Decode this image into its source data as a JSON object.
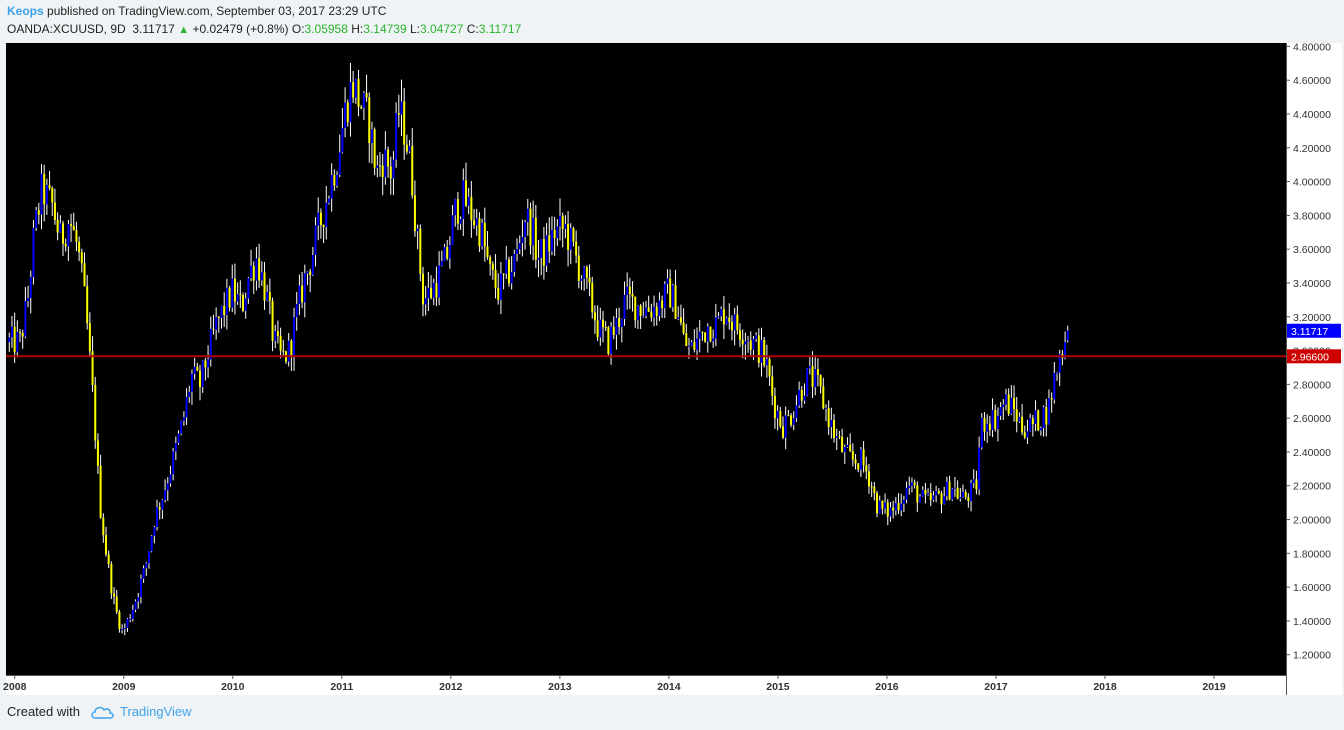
{
  "header": {
    "author": "Keops",
    "published_text": "published on TradingView.com, September 03, 2017 23:29 UTC",
    "symbol": "OANDA:XCUUSD, 9D",
    "last": "3.11717",
    "change": "+0.02479 (+0.8%)",
    "open_label": "O:",
    "open": "3.05958",
    "high_label": "H:",
    "high": "3.14739",
    "low_label": "L:",
    "low": "3.04727",
    "close_label": "C:",
    "close": "3.11717",
    "up_arrow": "▲"
  },
  "footer": {
    "created_with": "Created with",
    "brand": "TradingView",
    "logo_icon": "cloud-logo-icon"
  },
  "colors": {
    "background": "#000000",
    "up_candle": "#0000ff",
    "down_candle": "#ffff00",
    "wick": "#ffffff",
    "horizontal_line": "#b30000",
    "last_price_badge": "#0000ff",
    "line_badge": "#cc0000",
    "accent": "#3da2ea"
  },
  "chart_data": {
    "type": "candlestick",
    "symbol": "OANDA:XCUUSD",
    "interval": "9D",
    "x_ticks": [
      "2008",
      "2009",
      "2010",
      "2011",
      "2012",
      "2013",
      "2014",
      "2015",
      "2016",
      "2017",
      "2018",
      "2019"
    ],
    "y_ticks": [
      "1.20000",
      "1.40000",
      "1.60000",
      "1.80000",
      "2.00000",
      "2.20000",
      "2.40000",
      "2.60000",
      "2.80000",
      "3.00000",
      "3.20000",
      "3.40000",
      "3.60000",
      "3.80000",
      "4.00000",
      "4.20000",
      "4.40000",
      "4.60000",
      "4.80000"
    ],
    "ylim": [
      1.08,
      4.82
    ],
    "xlim": [
      2007.92,
      2019.66
    ],
    "last_price_label": "3.11717",
    "last_price": 3.11717,
    "horizontal_line_label": "2.96600",
    "horizontal_line": 2.966,
    "price_path": [
      [
        2007.95,
        3.05
      ],
      [
        2008.05,
        3.05
      ],
      [
        2008.12,
        3.3
      ],
      [
        2008.18,
        3.7
      ],
      [
        2008.25,
        3.95
      ],
      [
        2008.35,
        3.85
      ],
      [
        2008.42,
        3.65
      ],
      [
        2008.5,
        3.78
      ],
      [
        2008.58,
        3.6
      ],
      [
        2008.65,
        3.25
      ],
      [
        2008.72,
        2.7
      ],
      [
        2008.78,
        2.1
      ],
      [
        2008.85,
        1.75
      ],
      [
        2008.92,
        1.48
      ],
      [
        2008.99,
        1.33
      ],
      [
        2009.05,
        1.42
      ],
      [
        2009.12,
        1.55
      ],
      [
        2009.2,
        1.72
      ],
      [
        2009.28,
        2.0
      ],
      [
        2009.36,
        2.15
      ],
      [
        2009.45,
        2.35
      ],
      [
        2009.55,
        2.6
      ],
      [
        2009.62,
        2.85
      ],
      [
        2009.7,
        2.8
      ],
      [
        2009.78,
        3.0
      ],
      [
        2009.85,
        3.15
      ],
      [
        2009.92,
        3.25
      ],
      [
        2010.0,
        3.35
      ],
      [
        2010.08,
        3.25
      ],
      [
        2010.15,
        3.45
      ],
      [
        2010.22,
        3.55
      ],
      [
        2010.3,
        3.35
      ],
      [
        2010.38,
        3.05
      ],
      [
        2010.45,
        2.95
      ],
      [
        2010.52,
        3.0
      ],
      [
        2010.58,
        3.2
      ],
      [
        2010.65,
        3.4
      ],
      [
        2010.72,
        3.55
      ],
      [
        2010.8,
        3.75
      ],
      [
        2010.88,
        3.95
      ],
      [
        2010.96,
        4.15
      ],
      [
        2011.04,
        4.45
      ],
      [
        2011.1,
        4.58
      ],
      [
        2011.18,
        4.45
      ],
      [
        2011.25,
        4.35
      ],
      [
        2011.32,
        4.05
      ],
      [
        2011.38,
        4.15
      ],
      [
        2011.46,
        4.05
      ],
      [
        2011.52,
        4.42
      ],
      [
        2011.58,
        4.3
      ],
      [
        2011.64,
        4.05
      ],
      [
        2011.7,
        3.6
      ],
      [
        2011.75,
        3.3
      ],
      [
        2011.82,
        3.35
      ],
      [
        2011.9,
        3.45
      ],
      [
        2011.96,
        3.55
      ],
      [
        2012.05,
        3.85
      ],
      [
        2012.12,
        3.9
      ],
      [
        2012.2,
        3.8
      ],
      [
        2012.28,
        3.7
      ],
      [
        2012.36,
        3.45
      ],
      [
        2012.44,
        3.35
      ],
      [
        2012.52,
        3.45
      ],
      [
        2012.6,
        3.55
      ],
      [
        2012.68,
        3.8
      ],
      [
        2012.74,
        3.72
      ],
      [
        2012.8,
        3.55
      ],
      [
        2012.88,
        3.6
      ],
      [
        2012.95,
        3.7
      ],
      [
        2013.05,
        3.72
      ],
      [
        2013.12,
        3.6
      ],
      [
        2013.2,
        3.45
      ],
      [
        2013.28,
        3.3
      ],
      [
        2013.36,
        3.12
      ],
      [
        2013.44,
        3.05
      ],
      [
        2013.52,
        3.15
      ],
      [
        2013.6,
        3.3
      ],
      [
        2013.68,
        3.28
      ],
      [
        2013.76,
        3.25
      ],
      [
        2013.84,
        3.25
      ],
      [
        2013.92,
        3.28
      ],
      [
        2014.0,
        3.35
      ],
      [
        2014.08,
        3.25
      ],
      [
        2014.14,
        3.05
      ],
      [
        2014.2,
        3.0
      ],
      [
        2014.28,
        3.08
      ],
      [
        2014.36,
        3.15
      ],
      [
        2014.44,
        3.15
      ],
      [
        2014.52,
        3.25
      ],
      [
        2014.6,
        3.15
      ],
      [
        2014.68,
        3.12
      ],
      [
        2014.76,
        3.05
      ],
      [
        2014.84,
        3.0
      ],
      [
        2014.9,
        2.9
      ],
      [
        2014.96,
        2.7
      ],
      [
        2015.04,
        2.55
      ],
      [
        2015.12,
        2.62
      ],
      [
        2015.2,
        2.75
      ],
      [
        2015.28,
        2.85
      ],
      [
        2015.36,
        2.8
      ],
      [
        2015.44,
        2.65
      ],
      [
        2015.52,
        2.5
      ],
      [
        2015.6,
        2.4
      ],
      [
        2015.68,
        2.35
      ],
      [
        2015.76,
        2.35
      ],
      [
        2015.84,
        2.25
      ],
      [
        2015.9,
        2.1
      ],
      [
        2015.96,
        2.05
      ],
      [
        2016.04,
        2.05
      ],
      [
        2016.12,
        2.12
      ],
      [
        2016.2,
        2.2
      ],
      [
        2016.28,
        2.15
      ],
      [
        2016.36,
        2.1
      ],
      [
        2016.44,
        2.12
      ],
      [
        2016.52,
        2.15
      ],
      [
        2016.6,
        2.2
      ],
      [
        2016.68,
        2.12
      ],
      [
        2016.76,
        2.15
      ],
      [
        2016.82,
        2.2
      ],
      [
        2016.86,
        2.55
      ],
      [
        2016.92,
        2.6
      ],
      [
        2017.0,
        2.6
      ],
      [
        2017.08,
        2.7
      ],
      [
        2017.16,
        2.65
      ],
      [
        2017.24,
        2.55
      ],
      [
        2017.32,
        2.55
      ],
      [
        2017.4,
        2.6
      ],
      [
        2017.48,
        2.65
      ],
      [
        2017.54,
        2.85
      ],
      [
        2017.6,
        3.0
      ],
      [
        2017.66,
        3.1
      ]
    ]
  }
}
